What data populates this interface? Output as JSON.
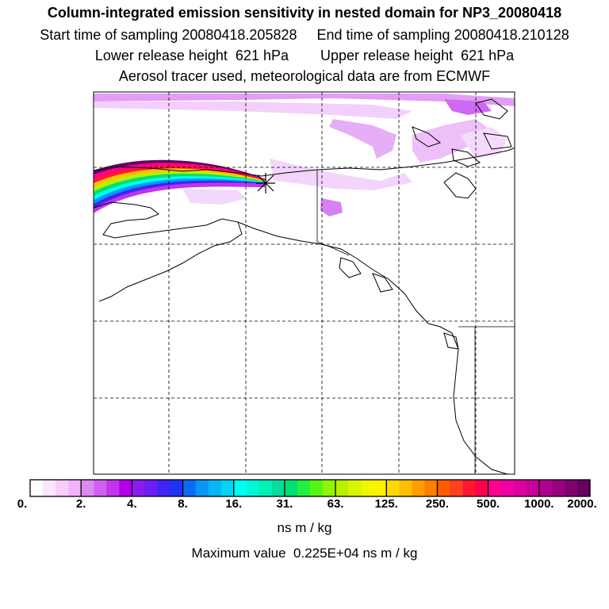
{
  "titles": {
    "line1": "Column-integrated emission sensitivity in nested domain for NP3_20080418",
    "line2": "Start time of sampling 20080418.205828     End time of sampling 20080418.210128",
    "line3": "Lower release height  621 hPa        Upper release height  621 hPa",
    "line4": "Aerosol tracer used, meteorological data are from ECMWF"
  },
  "colorbar": {
    "tick_labels": [
      "0.",
      "2.",
      "4.",
      "8.",
      "16.",
      "31.",
      "63.",
      "125.",
      "250.",
      "500.",
      "1000.",
      "2000."
    ],
    "units": "ns m / kg",
    "colors": [
      "#ffffff",
      "#fbe6fd",
      "#f6cdfb",
      "#f0b3f9",
      "#dc8af2",
      "#d060ef",
      "#c233ec",
      "#b300e8",
      "#8a1cf0",
      "#6a1ef3",
      "#3f24f5",
      "#1e32f7",
      "#0a6cf5",
      "#0896f5",
      "#06b6f5",
      "#04d4f5",
      "#00ffee",
      "#00f5d6",
      "#00f0b8",
      "#00e09a",
      "#00e070",
      "#24f040",
      "#58f514",
      "#90f500",
      "#b8f000",
      "#d8f500",
      "#f0f500",
      "#fff200",
      "#ffd800",
      "#ffbf00",
      "#ff9e00",
      "#ff8000",
      "#ff5a00",
      "#ff4020",
      "#ff1830",
      "#ff0050",
      "#ff0090",
      "#f000a0",
      "#e000a0",
      "#c80098",
      "#b0008e",
      "#980080",
      "#800070",
      "#680060"
    ]
  },
  "maximum": {
    "text": "Maximum value  0.225E+04 ns m / kg"
  },
  "map": {
    "receptor_marker": "asterisk-icon",
    "plume_colors": [
      "#680060",
      "#ff0090",
      "#ff1830",
      "#ffbf00",
      "#b8f000",
      "#00e070",
      "#00ffee",
      "#0896f5",
      "#3f24f5",
      "#c233ec"
    ]
  }
}
